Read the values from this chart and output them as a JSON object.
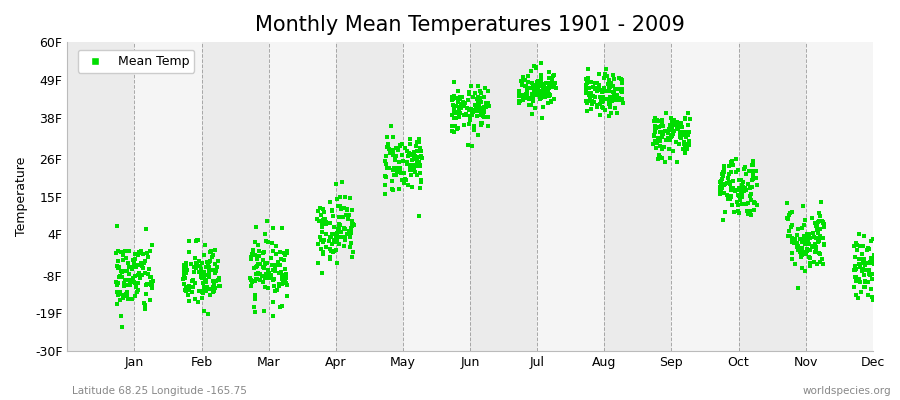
{
  "title": "Monthly Mean Temperatures 1901 - 2009",
  "ylabel": "Temperature",
  "subtitle_left": "Latitude 68.25 Longitude -165.75",
  "subtitle_right": "worldspecies.org",
  "yticks": [
    -30,
    -19,
    -8,
    4,
    15,
    26,
    38,
    49,
    60
  ],
  "ytick_labels": [
    "-30F",
    "-19F",
    "-8F",
    "4F",
    "15F",
    "26F",
    "38F",
    "49F",
    "60F"
  ],
  "ylim": [
    -30,
    60
  ],
  "months": [
    "Jan",
    "Feb",
    "Mar",
    "Apr",
    "May",
    "Jun",
    "Jul",
    "Aug",
    "Sep",
    "Oct",
    "Nov",
    "Dec"
  ],
  "dot_color": "#00dd00",
  "background_color": "#ffffff",
  "band_color_odd": "#ebebeb",
  "band_color_even": "#f5f5f5",
  "n_years": 109,
  "seed": 42,
  "monthly_mean_temps": [
    -8.5,
    -8.5,
    -6.0,
    6.0,
    25.0,
    40.0,
    46.5,
    44.5,
    33.0,
    18.0,
    2.5,
    -6.5
  ],
  "monthly_std_temps": [
    5.5,
    5.0,
    5.0,
    5.0,
    4.5,
    3.5,
    3.0,
    3.0,
    3.5,
    4.5,
    5.0,
    5.0
  ],
  "monthly_x_spread": [
    0.28,
    0.28,
    0.28,
    0.28,
    0.28,
    0.28,
    0.28,
    0.28,
    0.28,
    0.28,
    0.28,
    0.28
  ],
  "title_fontsize": 15,
  "axis_fontsize": 9,
  "legend_fontsize": 9,
  "dot_size": 5,
  "grid_color": "#888888",
  "grid_style": "--",
  "grid_linewidth": 0.7,
  "xlim_left": 0.0,
  "xlim_right": 13.0
}
